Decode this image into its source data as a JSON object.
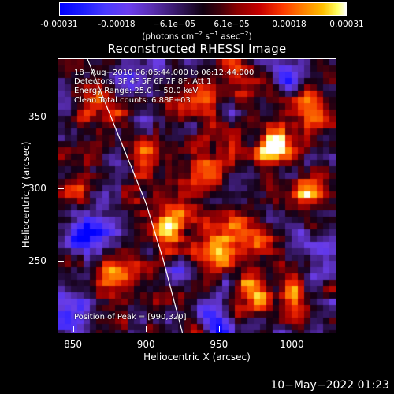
{
  "colorbar": {
    "ticks": [
      "-0.00031",
      "-0.00018",
      "−6.1e−05",
      "6.1e−05",
      "0.00018",
      "0.00031"
    ],
    "unit_prefix": "(photons cm",
    "unit_exp1": "−2",
    "unit_mid1": " s",
    "unit_exp2": "−1",
    "unit_mid2": " asec",
    "unit_exp3": "−2",
    "unit_suffix": ")"
  },
  "chart_data": {
    "type": "heatmap",
    "title": "Reconstructed RHESSI Image",
    "xlabel": "Heliocentric X (arcsec)",
    "ylabel": "Heliocentric Y (arcsec)",
    "xlim": [
      840,
      1030
    ],
    "ylim": [
      200,
      390
    ],
    "xticks": [
      "850",
      "900",
      "950",
      "1000"
    ],
    "yticks": [
      "250",
      "300",
      "350"
    ],
    "colorbar_range": [
      -0.00031,
      0.00031
    ],
    "peak_position": [
      990,
      320
    ],
    "limb_curve": [
      [
        860,
        390
      ],
      [
        880,
        340
      ],
      [
        900,
        290
      ],
      [
        912,
        250
      ],
      [
        925,
        200
      ]
    ],
    "bright_regions": [
      {
        "x": 990,
        "y": 330,
        "level": 1.0
      },
      {
        "x": 915,
        "y": 275,
        "level": 0.9
      },
      {
        "x": 945,
        "y": 255,
        "level": 0.85
      },
      {
        "x": 965,
        "y": 270,
        "level": 0.8
      },
      {
        "x": 880,
        "y": 240,
        "level": 0.75
      },
      {
        "x": 870,
        "y": 355,
        "level": 0.8
      },
      {
        "x": 945,
        "y": 315,
        "level": 0.7
      },
      {
        "x": 1015,
        "y": 355,
        "level": 0.7
      },
      {
        "x": 1010,
        "y": 300,
        "level": 0.75
      },
      {
        "x": 900,
        "y": 320,
        "level": 0.6
      },
      {
        "x": 975,
        "y": 225,
        "level": 0.7
      },
      {
        "x": 1000,
        "y": 230,
        "level": 0.6
      },
      {
        "x": 850,
        "y": 300,
        "level": 0.55
      },
      {
        "x": 930,
        "y": 360,
        "level": 0.6
      },
      {
        "x": 960,
        "y": 375,
        "level": 0.55
      }
    ],
    "dark_regions": [
      {
        "x": 860,
        "y": 270,
        "level": -0.8
      },
      {
        "x": 845,
        "y": 210,
        "level": -0.7
      },
      {
        "x": 950,
        "y": 205,
        "level": -0.6
      },
      {
        "x": 890,
        "y": 375,
        "level": -0.6
      },
      {
        "x": 1000,
        "y": 380,
        "level": -0.55
      },
      {
        "x": 1015,
        "y": 250,
        "level": -0.5
      }
    ]
  },
  "annotations": {
    "time_range": "18−Aug−2010 06:06:44.000 to 06:12:44.000",
    "detectors": "Detectors: 3F 4F 5F 6F 7F 8F, Att 1",
    "energy": "Energy Range: 25.0 − 50.0 keV",
    "method": "Clean     Total counts: 6.88E+03",
    "peak": "Position of Peak = [990,320]"
  },
  "footer": {
    "date": "10−May−2022 01:23"
  }
}
